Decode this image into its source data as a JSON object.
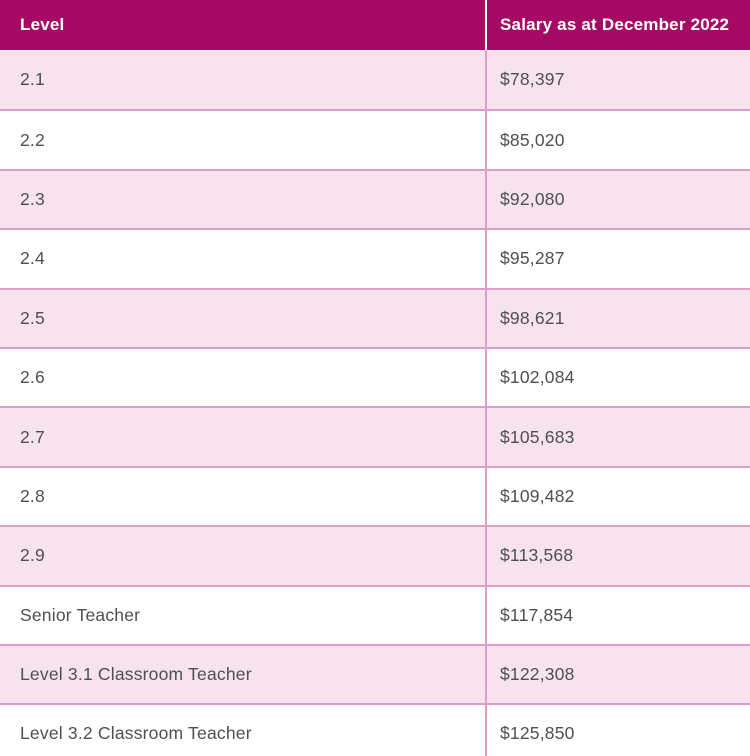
{
  "table": {
    "columns": [
      {
        "label": "Level"
      },
      {
        "label": "Salary as at December 2022"
      }
    ],
    "rows": [
      {
        "level": "2.1",
        "salary": "$78,397"
      },
      {
        "level": "2.2",
        "salary": "$85,020"
      },
      {
        "level": "2.3",
        "salary": "$92,080"
      },
      {
        "level": "2.4",
        "salary": "$95,287"
      },
      {
        "level": "2.5",
        "salary": "$98,621"
      },
      {
        "level": "2.6",
        "salary": "$102,084"
      },
      {
        "level": "2.7",
        "salary": "$105,683"
      },
      {
        "level": "2.8",
        "salary": "$109,482"
      },
      {
        "level": "2.9",
        "salary": "$113,568"
      },
      {
        "level": "Senior Teacher",
        "salary": "$117,854"
      },
      {
        "level": "Level 3.1 Classroom Teacher",
        "salary": "$122,308"
      },
      {
        "level": "Level 3.2 Classroom Teacher",
        "salary": "$125,850"
      }
    ]
  },
  "colors": {
    "header_bg": "#A50B64",
    "header_text": "#FFFFFF",
    "row_alt_bg": "#F6E3EE",
    "row_bg": "#FFFFFF",
    "border": "#DCA0C8",
    "body_text": "#4F4F51"
  }
}
